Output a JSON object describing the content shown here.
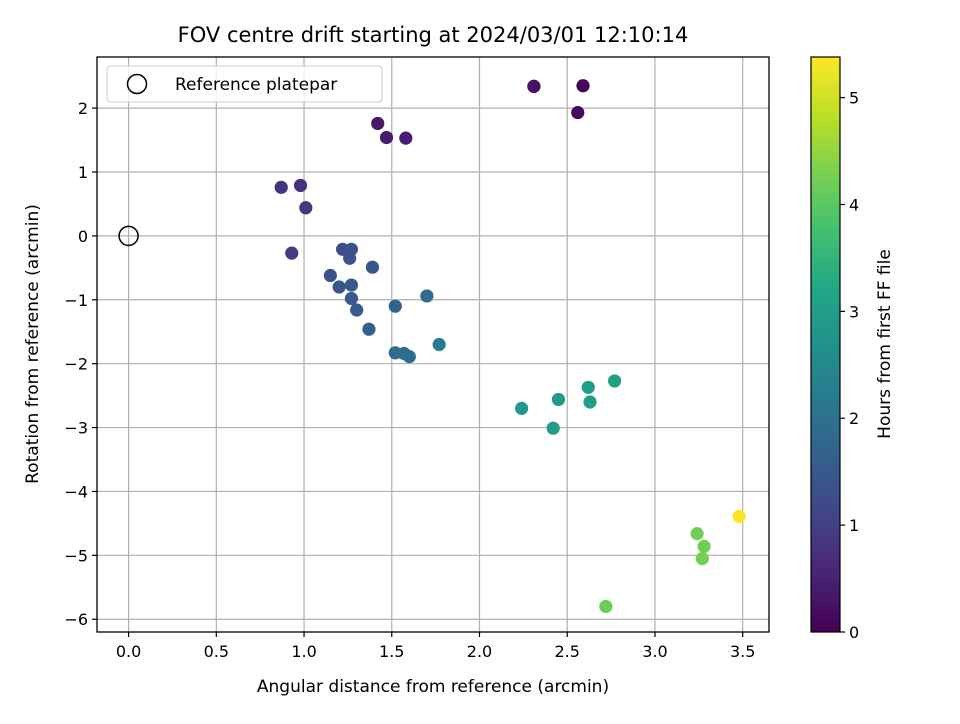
{
  "chart_data": {
    "type": "scatter",
    "title": "FOV centre drift starting at 2024/03/01 12:10:14",
    "xlabel": "Angular distance from reference (arcmin)",
    "ylabel": "Rotation from reference (arcmin)",
    "xlim": [
      -0.18,
      3.65
    ],
    "ylim": [
      -6.2,
      2.8
    ],
    "xticks": [
      "0.0",
      "0.5",
      "1.0",
      "1.5",
      "2.0",
      "2.5",
      "3.0",
      "3.5"
    ],
    "xtick_values": [
      0.0,
      0.5,
      1.0,
      1.5,
      2.0,
      2.5,
      3.0,
      3.5
    ],
    "yticks": [
      "2",
      "1",
      "0",
      "−1",
      "−2",
      "−3",
      "−4",
      "−5",
      "−6"
    ],
    "ytick_values": [
      2,
      1,
      0,
      -1,
      -2,
      -3,
      -4,
      -5,
      -6
    ],
    "grid": true,
    "legend": {
      "location": "upper left",
      "entries": [
        {
          "label": "Reference platepar"
        }
      ]
    },
    "reference_point": {
      "x": 0.0,
      "y": 0.0
    },
    "colorbar": {
      "label": "Hours from first FF file",
      "range": [
        0,
        5.38
      ],
      "ticks": [
        "0",
        "1",
        "2",
        "3",
        "4",
        "5"
      ],
      "tick_values": [
        0,
        1,
        2,
        3,
        4,
        5
      ],
      "colormap": "viridis"
    },
    "points": [
      {
        "x": 2.59,
        "y": 2.35,
        "c": 0.05
      },
      {
        "x": 2.31,
        "y": 2.34,
        "c": 0.2
      },
      {
        "x": 2.31,
        "y": 2.34,
        "c": 0.25
      },
      {
        "x": 2.56,
        "y": 1.93,
        "c": 0.1
      },
      {
        "x": 1.42,
        "y": 1.76,
        "c": 0.35
      },
      {
        "x": 1.47,
        "y": 1.54,
        "c": 0.4
      },
      {
        "x": 1.58,
        "y": 1.53,
        "c": 0.45
      },
      {
        "x": 0.87,
        "y": 0.76,
        "c": 0.8
      },
      {
        "x": 0.98,
        "y": 0.79,
        "c": 0.75
      },
      {
        "x": 1.01,
        "y": 0.44,
        "c": 0.85
      },
      {
        "x": 0.93,
        "y": -0.27,
        "c": 0.95
      },
      {
        "x": 1.22,
        "y": -0.21,
        "c": 1.3
      },
      {
        "x": 1.27,
        "y": -0.21,
        "c": 1.35
      },
      {
        "x": 1.26,
        "y": -0.35,
        "c": 1.35
      },
      {
        "x": 1.39,
        "y": -0.49,
        "c": 1.45
      },
      {
        "x": 1.15,
        "y": -0.62,
        "c": 1.4
      },
      {
        "x": 1.2,
        "y": -0.8,
        "c": 1.45
      },
      {
        "x": 1.27,
        "y": -0.77,
        "c": 1.5
      },
      {
        "x": 1.27,
        "y": -0.98,
        "c": 1.5
      },
      {
        "x": 1.3,
        "y": -1.16,
        "c": 1.55
      },
      {
        "x": 1.37,
        "y": -1.46,
        "c": 1.6
      },
      {
        "x": 1.52,
        "y": -1.1,
        "c": 1.7
      },
      {
        "x": 1.7,
        "y": -0.94,
        "c": 1.9
      },
      {
        "x": 1.52,
        "y": -1.83,
        "c": 1.85
      },
      {
        "x": 1.57,
        "y": -1.84,
        "c": 1.9
      },
      {
        "x": 1.6,
        "y": -1.89,
        "c": 1.95
      },
      {
        "x": 1.77,
        "y": -1.7,
        "c": 2.2
      },
      {
        "x": 2.24,
        "y": -2.7,
        "c": 2.85
      },
      {
        "x": 2.45,
        "y": -2.56,
        "c": 2.9
      },
      {
        "x": 2.42,
        "y": -3.01,
        "c": 2.95
      },
      {
        "x": 2.62,
        "y": -2.37,
        "c": 2.95
      },
      {
        "x": 2.63,
        "y": -2.6,
        "c": 3.0
      },
      {
        "x": 2.77,
        "y": -2.27,
        "c": 3.05
      },
      {
        "x": 3.24,
        "y": -4.66,
        "c": 4.2
      },
      {
        "x": 3.28,
        "y": -4.86,
        "c": 4.2
      },
      {
        "x": 3.27,
        "y": -5.05,
        "c": 4.25
      },
      {
        "x": 2.72,
        "y": -5.8,
        "c": 4.15
      },
      {
        "x": 3.48,
        "y": -4.39,
        "c": 5.35
      }
    ]
  }
}
